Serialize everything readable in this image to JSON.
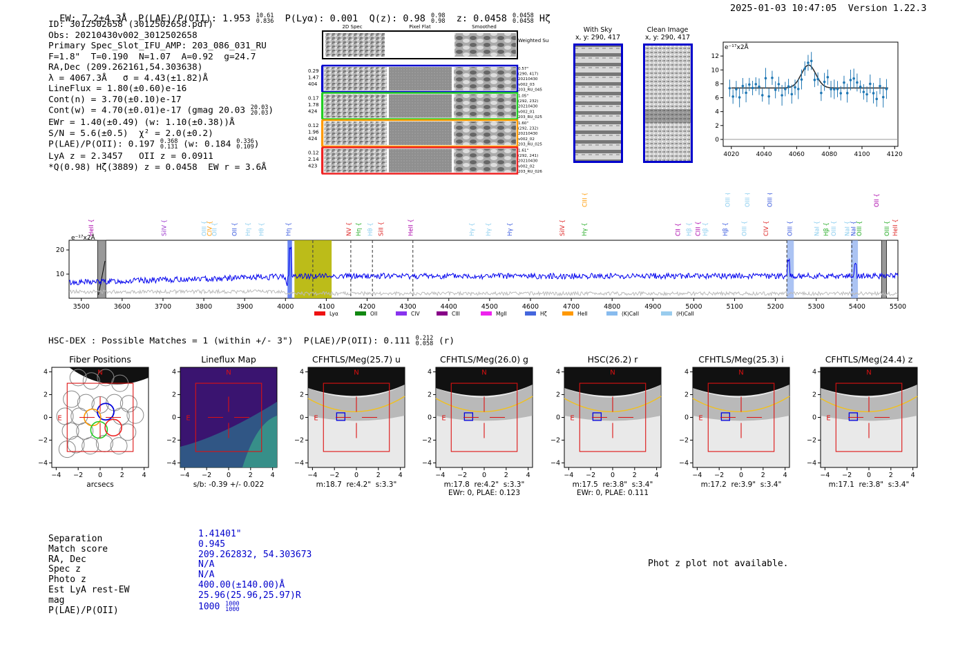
{
  "header": {
    "ew": "EW: 7.2±4.3Å",
    "plae_label": "P(LAE)/P(OII): 1.953",
    "plae_hi": "10.61",
    "plae_lo": "0.836",
    "plya": "P(Lyα): 0.001",
    "qz_label": "Q(z): 0.98",
    "qz_hi": "0.98",
    "qz_lo": "0.98",
    "z_label": "z: 0.0458",
    "z_hi": "0.0458",
    "z_lo": "0.0458",
    "z_line": "Hζ",
    "datetime": "2025-01-03 10:47:05",
    "version": "Version 1.22.3"
  },
  "info": {
    "id": "ID: 3012502658 (3012502658.pdf)",
    "obs": "Obs: 20210430v002_3012502658",
    "primary": "Primary Spec_Slot_IFU_AMP: 203_086_031_RU",
    "params": "F=1.8\"  T=0.190  N=1.07  A=0.92  g=24.7",
    "radec": "RA,Dec (209.262161,54.303638)",
    "lambda": "λ = 4067.3Å   σ = 4.43(±1.82)Å",
    "lineflux": "LineFlux = 1.80(±0.60)e-16",
    "contn": "Cont(n) = 3.70(±0.10)e-17",
    "contw": "Cont(w) = 4.70(±0.01)e-17 (gmag 20.03",
    "contw_hi": "20.03",
    "contw_lo": "20.03",
    "ewr": "EWr = 1.40(±0.49) (w: 1.10(±0.38))Å",
    "sn": "S/N = 5.6(±0.5)  χ² = 2.0(±0.2)",
    "plae": "P(LAE)/P(OII): 0.197",
    "plae_hi": "0.368",
    "plae_lo": "0.131",
    "plae_w": "(w: 0.184",
    "plae_w_hi": "0.336",
    "plae_w_lo": "0.109",
    "lya_z": "LyA z = 2.3457   OII z = 0.0911",
    "q_line": "*Q(0.98) Hζ(3889) z = 0.0458  EW r = 3.6Å"
  },
  "cutouts": {
    "col_headers": [
      "2D Spec",
      "Pixel Flat",
      "Smoothed"
    ],
    "weighted_sum": "Weighted Sum",
    "rows": [
      {
        "left": [
          "0.29",
          "1.47",
          "404"
        ],
        "right": [
          "0.57\"",
          "(290, 417)",
          "20210430",
          "v002_03",
          "203_RU_045"
        ],
        "color": "#0000cc"
      },
      {
        "left": [
          "0.17",
          "1.78",
          "424"
        ],
        "right": [
          "1.05\"",
          "(292, 232)",
          "20210430",
          "v002_01",
          "203_RU_025"
        ],
        "color": "#22cc22"
      },
      {
        "left": [
          "0.12",
          "1.96",
          "424"
        ],
        "right": [
          "1.60\"",
          "(292, 232)",
          "20210430",
          "v002_02",
          "203_RU_025"
        ],
        "color": "#ff9900"
      },
      {
        "left": [
          "0.12",
          "2.14",
          "423"
        ],
        "right": [
          "1.61\"",
          "(292, 241)",
          "20210430",
          "v002_02",
          "203_RU_026"
        ],
        "color": "#ee2222"
      }
    ]
  },
  "sky_panels": {
    "with_sky_title": "With Sky",
    "with_sky_xy": "x, y: 290, 417",
    "clean_title": "Clean Image",
    "clean_xy": "x, y: 290, 417"
  },
  "zoom_chart": {
    "unit": "e⁻¹⁷x2Å",
    "xticks": [
      4020,
      4040,
      4060,
      4080,
      4100,
      4120
    ],
    "yticks": [
      0,
      2,
      4,
      6,
      8,
      10,
      12
    ]
  },
  "line_labels": [
    {
      "name": "HeII",
      "x": 3529,
      "color": "#aa00aa",
      "row": 0
    },
    {
      "name": "SiIV",
      "x": 3708,
      "color": "#9933cc",
      "row": 0
    },
    {
      "name": "OIII",
      "x": 3806,
      "color": "#88ccee",
      "row": 0
    },
    {
      "name": "CIV",
      "x": 3819,
      "color": "#ff9900",
      "row": 0
    },
    {
      "name": "OII",
      "x": 3831,
      "color": "#88ccee",
      "row": 0
    },
    {
      "name": "OII",
      "x": 3880,
      "color": "#3355dd",
      "row": 0
    },
    {
      "name": "Hη",
      "x": 3913,
      "color": "#88ccee",
      "row": 0
    },
    {
      "name": "Hθ",
      "x": 3946,
      "color": "#88ccee",
      "row": 0
    },
    {
      "name": "Hη",
      "x": 4012,
      "color": "#3355dd",
      "row": 0
    },
    {
      "name": "NV",
      "x": 4160,
      "color": "#dd2222",
      "row": 0
    },
    {
      "name": "Hη",
      "x": 4184,
      "color": "#22aa22",
      "row": 0
    },
    {
      "name": "Hθ",
      "x": 4213,
      "color": "#88ccee",
      "row": 0
    },
    {
      "name": "SiII",
      "x": 4239,
      "color": "#dd2222",
      "row": 0
    },
    {
      "name": "HeII",
      "x": 4312,
      "color": "#aa00aa",
      "row": 0
    },
    {
      "name": "Hγ",
      "x": 4461,
      "color": "#88ccee",
      "row": 0
    },
    {
      "name": "Hγ",
      "x": 4502,
      "color": "#88ccee",
      "row": 0
    },
    {
      "name": "Hγ",
      "x": 4554,
      "color": "#3355dd",
      "row": 0
    },
    {
      "name": "SiIV",
      "x": 4683,
      "color": "#dd2222",
      "row": 0
    },
    {
      "name": "Hγ",
      "x": 4737,
      "color": "#22aa22",
      "row": 0
    },
    {
      "name": "CIII",
      "x": 4738,
      "color": "#ff9900",
      "row": 1
    },
    {
      "name": "CII",
      "x": 4966,
      "color": "#aa00aa",
      "row": 0
    },
    {
      "name": "Hβ",
      "x": 4993,
      "color": "#88ccee",
      "row": 0
    },
    {
      "name": "CIII",
      "x": 5015,
      "color": "#aa00aa",
      "row": 0
    },
    {
      "name": "Hβ",
      "x": 5033,
      "color": "#88ccee",
      "row": 0
    },
    {
      "name": "Hβ",
      "x": 5082,
      "color": "#3355dd",
      "row": 0
    },
    {
      "name": "OIII",
      "x": 5088,
      "color": "#88ccee",
      "row": 1
    },
    {
      "name": "OIII",
      "x": 5129,
      "color": "#88ccee",
      "row": 0
    },
    {
      "name": "OIII",
      "x": 5136,
      "color": "#88ccee",
      "row": 1
    },
    {
      "name": "CIV",
      "x": 5182,
      "color": "#dd2222",
      "row": 0
    },
    {
      "name": "OIII",
      "x": 5191,
      "color": "#3355dd",
      "row": 1
    },
    {
      "name": "OIII",
      "x": 5240,
      "color": "#3355dd",
      "row": 0
    },
    {
      "name": "NaI",
      "x": 5306,
      "color": "#88ccee",
      "row": 0
    },
    {
      "name": "Hβ",
      "x": 5329,
      "color": "#22aa22",
      "row": 0
    },
    {
      "name": "OIII",
      "x": 5348,
      "color": "#88ccee",
      "row": 0
    },
    {
      "name": "NaI",
      "x": 5381,
      "color": "#88ccee",
      "row": 0
    },
    {
      "name": "NaI",
      "x": 5396,
      "color": "#3355dd",
      "row": 0
    },
    {
      "name": "OIII",
      "x": 5410,
      "color": "#22aa22",
      "row": 0
    },
    {
      "name": "OII",
      "x": 5453,
      "color": "#aa00aa",
      "row": 1
    },
    {
      "name": "OIII",
      "x": 5478,
      "color": "#22aa22",
      "row": 0
    },
    {
      "name": "HeII",
      "x": 5498,
      "color": "#dd2222",
      "row": 0
    }
  ],
  "full_chart": {
    "unit": "e⁻¹⁷x2Å",
    "xticks": [
      3500,
      3600,
      3700,
      3800,
      3900,
      4000,
      4100,
      4200,
      4300,
      4400,
      4500,
      4600,
      4700,
      4800,
      4900,
      5000,
      5100,
      5200,
      5300,
      5400,
      5500
    ],
    "yticks": [
      10,
      20
    ],
    "legend": [
      {
        "name": "Lyα",
        "color": "#ee1111"
      },
      {
        "name": "OII",
        "color": "#118811"
      },
      {
        "name": "CIV",
        "color": "#8833ee"
      },
      {
        "name": "CIII",
        "color": "#880088"
      },
      {
        "name": "MgII",
        "color": "#ee22ee"
      },
      {
        "name": "Hζ",
        "color": "#4466dd"
      },
      {
        "name": "HeII",
        "color": "#ff9900"
      },
      {
        "name": "(K)CaII",
        "color": "#88bbee"
      },
      {
        "name": "(H)CaII",
        "color": "#99ccee"
      }
    ]
  },
  "hsc": {
    "title_main": "HSC-DEX : Possible Matches = 1 (within +/- 3\")  P(LAE)/P(OII): 0.111",
    "title_hi": "0.212",
    "title_lo": "0.058",
    "title_end": "(r)"
  },
  "image_panels": [
    {
      "title": "Fiber Positions",
      "caption": "arcsecs",
      "caption2": ""
    },
    {
      "title": "Lineflux Map",
      "caption": "s/b: -0.39 +/- 0.022",
      "caption2": ""
    },
    {
      "title": "CFHTLS/Meg(25.7) u",
      "caption": "m:18.7  re:4.2\"  s:3.3\"",
      "caption2": ""
    },
    {
      "title": "CFHTLS/Meg(26.0) g",
      "caption": "m:17.8  re:4.2\"  s:3.3\"",
      "caption2": "EWr: 0, PLAE: 0.123"
    },
    {
      "title": "HSC(26.2) r",
      "caption": "m:17.5  re:3.8\"  s:3.4\"",
      "caption2": "EWr: 0, PLAE: 0.111"
    },
    {
      "title": "CFHTLS/Meg(25.3) i",
      "caption": "m:17.2  re:3.9\"  s:3.4\"",
      "caption2": ""
    },
    {
      "title": "CFHTLS/Meg(24.4) z",
      "caption": "m:17.1  re:3.8\"  s:3.4\"",
      "caption2": ""
    }
  ],
  "panel_axis": {
    "ticks": [
      "−4",
      "−2",
      "0",
      "2",
      "4"
    ],
    "north": "N",
    "east": "E"
  },
  "details": {
    "labels": [
      "Separation",
      "Match score",
      "RA, Dec",
      "Spec z",
      "Photo z",
      "Est LyA rest-EW",
      "mag",
      "P(LAE)/P(OII)"
    ],
    "values": [
      "1.41401\"",
      "0.945",
      "209.262832, 54.303673",
      "N/A",
      "N/A",
      "400.00(±140.00)Å",
      "25.96(25.96,25.97)R",
      "1000"
    ],
    "plae_hi": "1000",
    "plae_lo": "1000"
  },
  "phot_z_note": "Phot z plot not available."
}
